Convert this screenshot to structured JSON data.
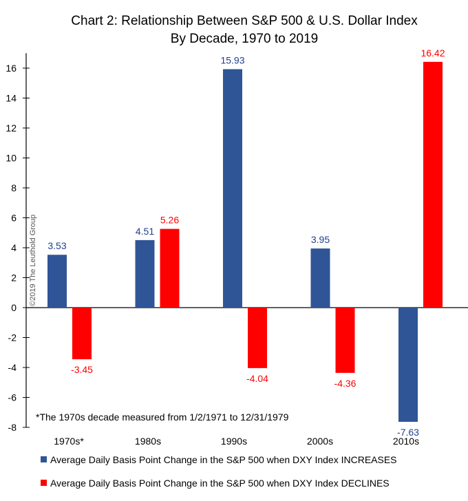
{
  "chart_data": {
    "type": "bar",
    "title": "Chart 2: Relationship Between S&P 500 & U.S. Dollar Index",
    "subtitle": "By Decade, 1970 to 2019",
    "categories": [
      "1970s*",
      "1980s",
      "1990s",
      "2000s",
      "2010s"
    ],
    "series": [
      {
        "name": "Average Daily Basis Point Change in the S&P 500 when DXY Index INCREASES",
        "color": "#2F5597",
        "values": [
          3.53,
          4.51,
          15.93,
          3.95,
          -7.63
        ],
        "labels": [
          "3.53",
          "4.51",
          "15.93",
          "3.95",
          "-7.63"
        ]
      },
      {
        "name": "Average Daily Basis Point Change in the S&P 500 when DXY Index DECLINES",
        "color": "#FF0000",
        "values": [
          -3.45,
          5.26,
          -4.04,
          -4.36,
          16.42
        ],
        "labels": [
          "-3.45",
          "5.26",
          "-4.04",
          "-4.36",
          "16.42"
        ]
      }
    ],
    "ylim": [
      -8,
      17
    ],
    "yticks": [
      "-8",
      "-6",
      "-4",
      "-2",
      "0",
      "2",
      "4",
      "6",
      "8",
      "10",
      "12",
      "14",
      "16"
    ],
    "grid": false,
    "legend": "bottom",
    "xlabel": "",
    "ylabel": "",
    "annotation": "*The 1970s decade measured from 1/2/1971 to 12/31/1979",
    "watermark": "©2019 The Leuthold Group"
  }
}
